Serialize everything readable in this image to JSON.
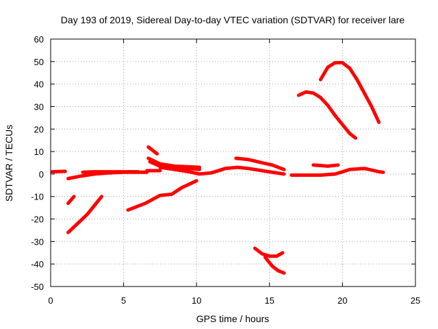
{
  "chart_data": {
    "type": "scatter",
    "title": "Day 193 of 2019, Sidereal Day-to-day VTEC variation (SDTVAR) for receiver lare",
    "xlabel": "GPS time / hours",
    "ylabel": "SDTVAR / TECUs",
    "xlim": [
      0,
      25
    ],
    "ylim": [
      -50,
      60
    ],
    "xticks": [
      0,
      5,
      10,
      15,
      20,
      25
    ],
    "yticks": [
      -50,
      -40,
      -30,
      -20,
      -10,
      0,
      10,
      20,
      30,
      40,
      50,
      60
    ],
    "xtick_labels": [
      "0",
      "5",
      "10",
      "15",
      "20",
      "25"
    ],
    "ytick_labels": [
      "-50",
      "-40",
      "-30",
      "-20",
      "-10",
      "0",
      "10",
      "20",
      "30",
      "40",
      "50",
      "60"
    ],
    "grid": true,
    "legend": "none",
    "series_color": "#ff0000",
    "segments": [
      {
        "x": [
          0.1,
          1.0
        ],
        "y": [
          1.0,
          1.2
        ]
      },
      {
        "x": [
          1.2,
          1.6
        ],
        "y": [
          -13,
          -10
        ]
      },
      {
        "x": [
          1.2,
          2.5,
          3.5
        ],
        "y": [
          -26,
          -18,
          -10
        ]
      },
      {
        "x": [
          1.2,
          2.0,
          3.0,
          4.0,
          5.0,
          6.0,
          6.6
        ],
        "y": [
          -2.0,
          -1.0,
          0.0,
          0.5,
          0.8,
          0.8,
          0.8
        ]
      },
      {
        "x": [
          2.2,
          3.0,
          4.0,
          5.0,
          6.0
        ],
        "y": [
          0.8,
          1.0,
          1.0,
          1.0,
          1.0
        ]
      },
      {
        "x": [
          6.6,
          7.5
        ],
        "y": [
          1.5,
          1.5
        ]
      },
      {
        "x": [
          5.3,
          6.5,
          7.5,
          8.3,
          9.0,
          10.0
        ],
        "y": [
          -16,
          -13,
          -9.5,
          -9.0,
          -6.0,
          -3.0
        ]
      },
      {
        "x": [
          6.7,
          7.3
        ],
        "y": [
          12,
          9
        ]
      },
      {
        "x": [
          6.7,
          7.5,
          8.5,
          9.5,
          10.2
        ],
        "y": [
          7.0,
          4.5,
          3.5,
          3.2,
          3.0
        ]
      },
      {
        "x": [
          6.8,
          7.5,
          8.5,
          9.5,
          10.2
        ],
        "y": [
          5.5,
          3.5,
          2.5,
          2.5,
          2.0
        ]
      },
      {
        "x": [
          7.5,
          8.5,
          9.5,
          10.2,
          11.0,
          12.0,
          12.8,
          13.5,
          14.5,
          15.5,
          16.0
        ],
        "y": [
          3.0,
          2.0,
          1.0,
          0.0,
          0.5,
          2.5,
          3.0,
          2.5,
          1.5,
          0.5,
          0.0
        ]
      },
      {
        "x": [
          12.7,
          13.5,
          14.5,
          15.2,
          16.0
        ],
        "y": [
          7.0,
          6.5,
          5.0,
          4.0,
          2.0
        ]
      },
      {
        "x": [
          16.5,
          17.5,
          18.5,
          19.5,
          20.5,
          21.5,
          22.5,
          22.8
        ],
        "y": [
          -0.5,
          -0.5,
          -0.5,
          0.0,
          2.0,
          2.5,
          1.0,
          0.8
        ]
      },
      {
        "x": [
          18.0,
          19.0,
          19.7
        ],
        "y": [
          4.0,
          3.5,
          4.0
        ]
      },
      {
        "x": [
          17.0,
          17.5,
          18.0,
          18.5,
          19.0,
          19.5,
          20.0,
          20.5,
          20.9
        ],
        "y": [
          35,
          36.5,
          36,
          34,
          30.5,
          26,
          22,
          18,
          16
        ]
      },
      {
        "x": [
          18.5,
          19.0,
          19.5,
          20.0,
          20.5,
          21.0,
          21.5,
          22.0,
          22.5
        ],
        "y": [
          42,
          47.5,
          49.5,
          49.5,
          47,
          42,
          36,
          30,
          23
        ]
      },
      {
        "x": [
          14.0,
          14.5,
          15.0,
          15.5,
          15.9
        ],
        "y": [
          -33,
          -35.5,
          -36.5,
          -36.5,
          -35
        ]
      },
      {
        "x": [
          14.7,
          15.2,
          15.6,
          16.0
        ],
        "y": [
          -37,
          -41,
          -43,
          -44
        ]
      }
    ]
  }
}
